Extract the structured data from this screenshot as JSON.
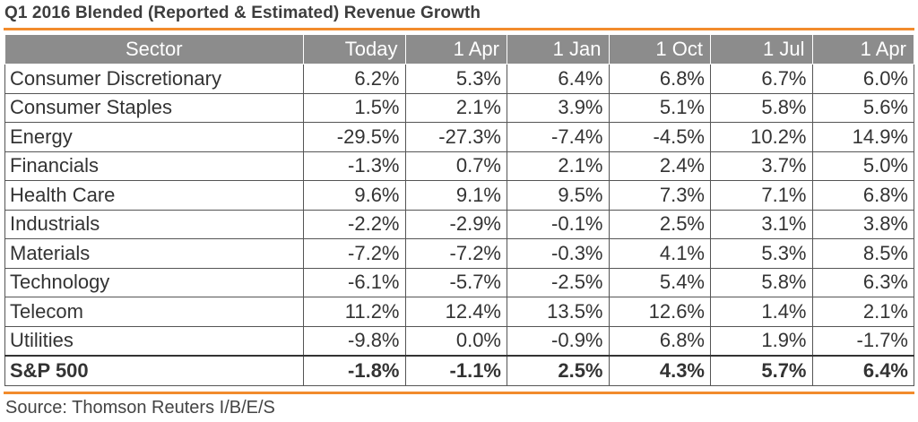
{
  "title": "Q1 2016 Blended (Reported & Estimated) Revenue Growth",
  "source": "Source: Thomson Reuters I/B/E/S",
  "colors": {
    "accent_rule": "#f28b2c",
    "header_bg": "#8c8c8c"
  },
  "chart_data": {
    "type": "table",
    "columns": [
      "Sector",
      "Today",
      "1 Apr",
      "1 Jan",
      "1 Oct",
      "1 Jul",
      "1 Apr"
    ],
    "rows": [
      [
        "Consumer Discretionary",
        "6.2%",
        "5.3%",
        "6.4%",
        "6.8%",
        "6.7%",
        "6.0%"
      ],
      [
        "Consumer Staples",
        "1.5%",
        "2.1%",
        "3.9%",
        "5.1%",
        "5.8%",
        "5.6%"
      ],
      [
        "Energy",
        "-29.5%",
        "-27.3%",
        "-7.4%",
        "-4.5%",
        "10.2%",
        "14.9%"
      ],
      [
        "Financials",
        "-1.3%",
        "0.7%",
        "2.1%",
        "2.4%",
        "3.7%",
        "5.0%"
      ],
      [
        "Health Care",
        "9.6%",
        "9.1%",
        "9.5%",
        "7.3%",
        "7.1%",
        "6.8%"
      ],
      [
        "Industrials",
        "-2.2%",
        "-2.9%",
        "-0.1%",
        "2.5%",
        "3.1%",
        "3.8%"
      ],
      [
        "Materials",
        "-7.2%",
        "-7.2%",
        "-0.3%",
        "4.1%",
        "5.3%",
        "8.5%"
      ],
      [
        "Technology",
        "-6.1%",
        "-5.7%",
        "-2.5%",
        "5.4%",
        "5.8%",
        "6.3%"
      ],
      [
        "Telecom",
        "11.2%",
        "12.4%",
        "13.5%",
        "12.6%",
        "1.4%",
        "2.1%"
      ],
      [
        "Utilities",
        "-9.8%",
        "0.0%",
        "-0.9%",
        "6.8%",
        "1.9%",
        "-1.7%"
      ]
    ],
    "total_row": [
      "S&P 500",
      "-1.8%",
      "-1.1%",
      "2.5%",
      "4.3%",
      "5.7%",
      "6.4%"
    ]
  }
}
